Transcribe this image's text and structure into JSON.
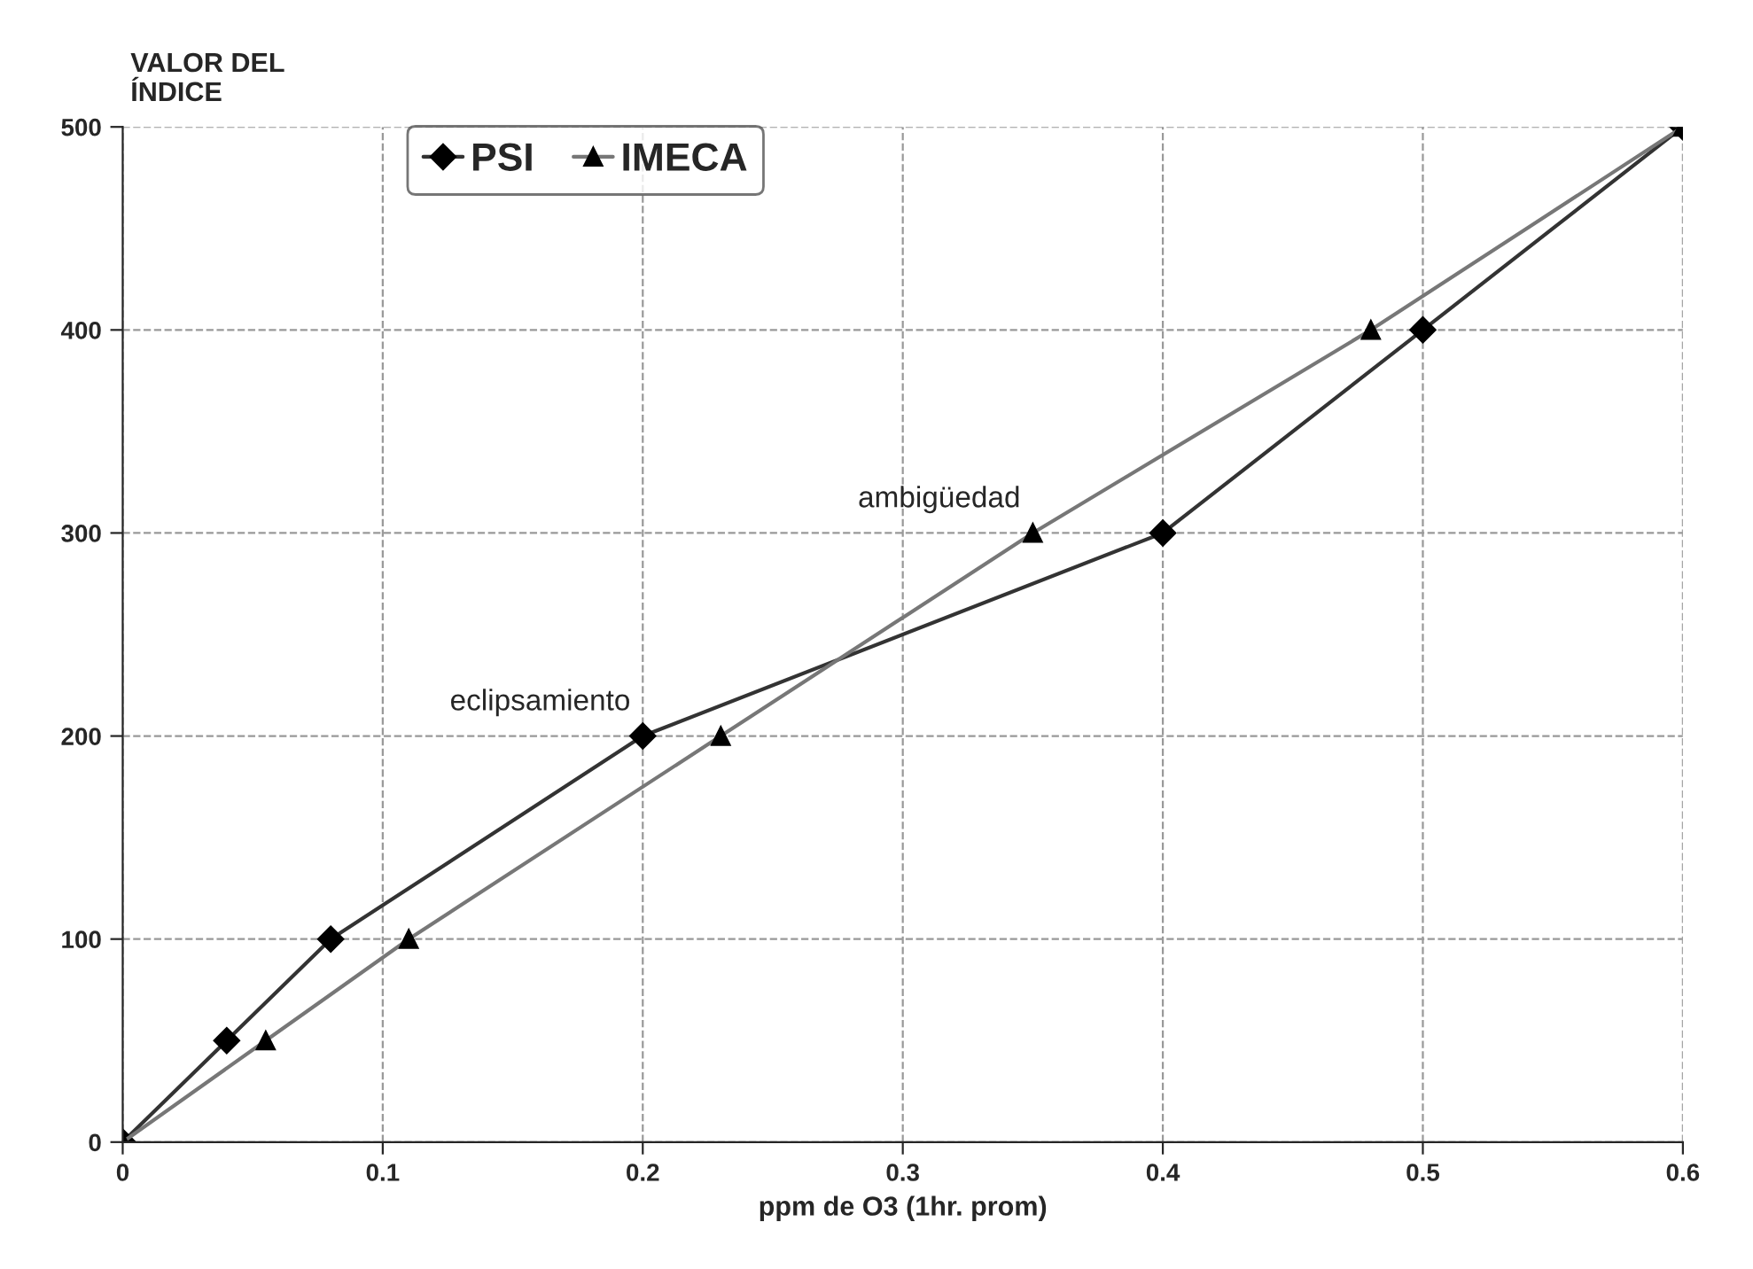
{
  "chart_data": {
    "type": "line",
    "xlabel": "ppm de O3 (1hr. prom)",
    "ylabel": "VALOR DEL\nÍNDICE",
    "xlim": [
      0,
      0.6
    ],
    "ylim": [
      0,
      500
    ],
    "xticks": [
      0,
      0.1,
      0.2,
      0.3,
      0.4,
      0.5,
      0.6
    ],
    "yticks": [
      0,
      100,
      200,
      300,
      400,
      500
    ],
    "grid": true,
    "legend": "top left",
    "series": [
      {
        "name": "PSI",
        "color": "#333333",
        "marker": "diamond",
        "x": [
          0,
          0.04,
          0.08,
          0.2,
          0.4,
          0.5,
          0.6
        ],
        "values": [
          0,
          50,
          100,
          200,
          300,
          400,
          500
        ]
      },
      {
        "name": "IMECA",
        "color": "#777777",
        "marker": "triangle",
        "x": [
          0,
          0.055,
          0.11,
          0.23,
          0.35,
          0.48,
          0.6
        ],
        "values": [
          0,
          50,
          100,
          200,
          300,
          400,
          500
        ]
      }
    ],
    "annotations": [
      {
        "text": "eclipsamiento",
        "x": 0.2,
        "y": 200
      },
      {
        "text": "ambigüedad",
        "x": 0.35,
        "y": 300
      }
    ]
  }
}
